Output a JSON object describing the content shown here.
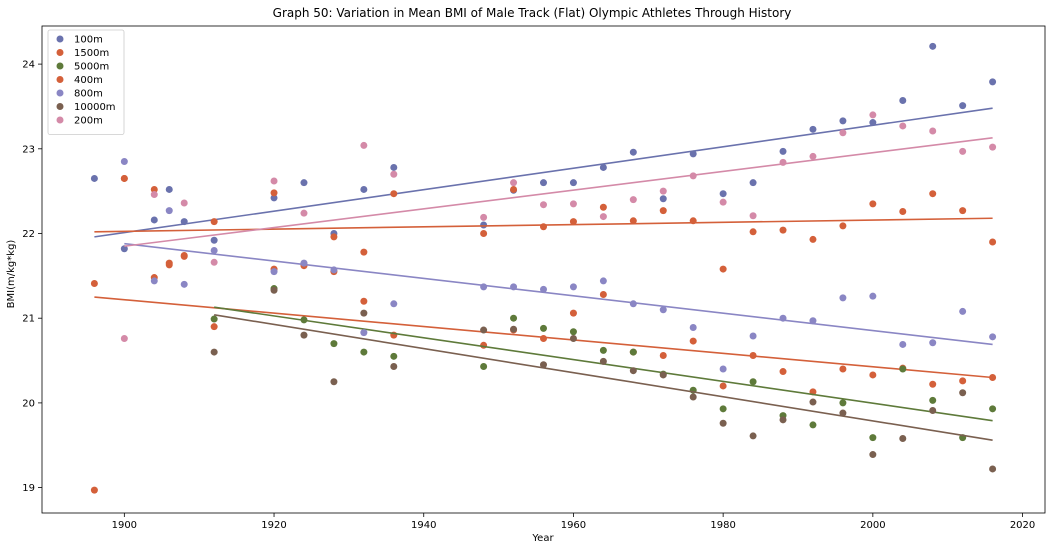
{
  "chart_data": {
    "type": "scatter",
    "title": "Graph 50: Variation in Mean BMI of Male Track (Flat) Olympic Athletes Through History",
    "xlabel": "Year",
    "ylabel": "BMI(m/kg*kg)",
    "xlim": [
      1889,
      2023
    ],
    "ylim": [
      18.7,
      24.45
    ],
    "xticks": [
      1900,
      1920,
      1940,
      1960,
      1980,
      2000,
      2020
    ],
    "yticks": [
      19,
      20,
      21,
      22,
      23,
      24
    ],
    "legend_position": "top-left",
    "grid": false,
    "series": [
      {
        "name": "100m",
        "color": "#6a72ad",
        "points": [
          [
            1896,
            22.65
          ],
          [
            1900,
            21.82
          ],
          [
            1904,
            22.16
          ],
          [
            1906,
            22.52
          ],
          [
            1908,
            22.14
          ],
          [
            1912,
            21.92
          ],
          [
            1920,
            22.42
          ],
          [
            1924,
            22.6
          ],
          [
            1928,
            22.0
          ],
          [
            1932,
            22.52
          ],
          [
            1936,
            22.78
          ],
          [
            1948,
            22.1
          ],
          [
            1952,
            22.51
          ],
          [
            1956,
            22.6
          ],
          [
            1960,
            22.6
          ],
          [
            1964,
            22.78
          ],
          [
            1968,
            22.96
          ],
          [
            1972,
            22.41
          ],
          [
            1976,
            22.94
          ],
          [
            1980,
            22.47
          ],
          [
            1984,
            22.6
          ],
          [
            1988,
            22.97
          ],
          [
            1992,
            23.23
          ],
          [
            1996,
            23.33
          ],
          [
            2000,
            23.31
          ],
          [
            2004,
            23.57
          ],
          [
            2008,
            24.21
          ],
          [
            2012,
            23.51
          ],
          [
            2016,
            23.79
          ]
        ],
        "trend": [
          [
            1896,
            21.96
          ],
          [
            2016,
            23.48
          ]
        ]
      },
      {
        "name": "1500m",
        "color": "#d4603a",
        "points": [
          [
            1896,
            21.41
          ],
          [
            1900,
            22.65
          ],
          [
            1904,
            21.48
          ],
          [
            1906,
            21.65
          ],
          [
            1908,
            21.74
          ],
          [
            1912,
            20.9
          ],
          [
            1920,
            21.58
          ],
          [
            1924,
            21.63
          ],
          [
            1928,
            21.55
          ],
          [
            1932,
            21.2
          ],
          [
            1936,
            20.8
          ],
          [
            1948,
            20.68
          ],
          [
            1952,
            20.86
          ],
          [
            1956,
            20.76
          ],
          [
            1960,
            21.06
          ],
          [
            1964,
            21.28
          ],
          [
            1968,
            20.6
          ],
          [
            1972,
            20.56
          ],
          [
            1976,
            20.73
          ],
          [
            1980,
            20.2
          ],
          [
            1984,
            20.56
          ],
          [
            1988,
            20.37
          ],
          [
            1992,
            20.13
          ],
          [
            1996,
            20.4
          ],
          [
            2000,
            20.33
          ],
          [
            2004,
            20.41
          ],
          [
            2008,
            20.22
          ],
          [
            2012,
            20.26
          ],
          [
            2016,
            20.3
          ]
        ],
        "trend": [
          [
            1896,
            21.25
          ],
          [
            2016,
            20.3
          ]
        ]
      },
      {
        "name": "5000m",
        "color": "#5e7a3a",
        "points": [
          [
            1912,
            20.99
          ],
          [
            1920,
            21.35
          ],
          [
            1924,
            20.98
          ],
          [
            1928,
            20.7
          ],
          [
            1932,
            20.6
          ],
          [
            1936,
            20.55
          ],
          [
            1948,
            20.43
          ],
          [
            1952,
            21.0
          ],
          [
            1956,
            20.88
          ],
          [
            1960,
            20.84
          ],
          [
            1964,
            20.62
          ],
          [
            1968,
            20.6
          ],
          [
            1972,
            20.34
          ],
          [
            1976,
            20.15
          ],
          [
            1980,
            19.93
          ],
          [
            1984,
            20.25
          ],
          [
            1988,
            19.85
          ],
          [
            1992,
            19.74
          ],
          [
            1996,
            20.0
          ],
          [
            2000,
            19.59
          ],
          [
            2004,
            20.4
          ],
          [
            2008,
            20.03
          ],
          [
            2012,
            19.59
          ],
          [
            2016,
            19.93
          ]
        ],
        "trend": [
          [
            1912,
            21.13
          ],
          [
            2016,
            19.79
          ]
        ]
      },
      {
        "name": "400m",
        "color": "#d4603a",
        "points": [
          [
            1896,
            18.97
          ],
          [
            1900,
            22.65
          ],
          [
            1904,
            22.52
          ],
          [
            1906,
            21.63
          ],
          [
            1908,
            21.73
          ],
          [
            1912,
            22.14
          ],
          [
            1920,
            22.48
          ],
          [
            1924,
            21.62
          ],
          [
            1928,
            21.96
          ],
          [
            1932,
            21.78
          ],
          [
            1936,
            22.47
          ],
          [
            1948,
            22.0
          ],
          [
            1952,
            22.52
          ],
          [
            1956,
            22.08
          ],
          [
            1960,
            22.14
          ],
          [
            1964,
            22.31
          ],
          [
            1968,
            22.15
          ],
          [
            1972,
            22.27
          ],
          [
            1976,
            22.15
          ],
          [
            1980,
            21.58
          ],
          [
            1984,
            22.02
          ],
          [
            1988,
            22.04
          ],
          [
            1992,
            21.93
          ],
          [
            1996,
            22.09
          ],
          [
            2000,
            22.35
          ],
          [
            2004,
            22.26
          ],
          [
            2008,
            22.47
          ],
          [
            2012,
            22.27
          ],
          [
            2016,
            21.9
          ]
        ],
        "trend": [
          [
            1896,
            22.02
          ],
          [
            2016,
            22.18
          ]
        ]
      },
      {
        "name": "800m",
        "color": "#8a86c4",
        "points": [
          [
            1900,
            22.85
          ],
          [
            1904,
            21.44
          ],
          [
            1906,
            22.27
          ],
          [
            1908,
            21.4
          ],
          [
            1912,
            21.8
          ],
          [
            1920,
            21.55
          ],
          [
            1924,
            21.65
          ],
          [
            1928,
            21.57
          ],
          [
            1932,
            20.83
          ],
          [
            1936,
            21.17
          ],
          [
            1948,
            21.37
          ],
          [
            1952,
            21.37
          ],
          [
            1956,
            21.34
          ],
          [
            1960,
            21.37
          ],
          [
            1964,
            21.44
          ],
          [
            1968,
            21.17
          ],
          [
            1972,
            21.1
          ],
          [
            1976,
            20.89
          ],
          [
            1980,
            20.4
          ],
          [
            1984,
            20.79
          ],
          [
            1988,
            21.0
          ],
          [
            1992,
            20.97
          ],
          [
            1996,
            21.24
          ],
          [
            2000,
            21.26
          ],
          [
            2004,
            20.69
          ],
          [
            2008,
            20.71
          ],
          [
            2012,
            21.08
          ],
          [
            2016,
            20.78
          ]
        ],
        "trend": [
          [
            1900,
            21.88
          ],
          [
            2016,
            20.69
          ]
        ]
      },
      {
        "name": "10000m",
        "color": "#7a6050",
        "points": [
          [
            1912,
            20.6
          ],
          [
            1920,
            21.33
          ],
          [
            1924,
            20.8
          ],
          [
            1928,
            20.25
          ],
          [
            1932,
            21.06
          ],
          [
            1936,
            20.43
          ],
          [
            1948,
            20.86
          ],
          [
            1952,
            20.87
          ],
          [
            1956,
            20.45
          ],
          [
            1960,
            20.76
          ],
          [
            1964,
            20.49
          ],
          [
            1968,
            20.38
          ],
          [
            1972,
            20.33
          ],
          [
            1976,
            20.07
          ],
          [
            1980,
            19.76
          ],
          [
            1984,
            19.61
          ],
          [
            1988,
            19.8
          ],
          [
            1992,
            20.01
          ],
          [
            1996,
            19.88
          ],
          [
            2000,
            19.39
          ],
          [
            2004,
            19.58
          ],
          [
            2008,
            19.91
          ],
          [
            2012,
            20.12
          ],
          [
            2016,
            19.22
          ]
        ],
        "trend": [
          [
            1912,
            21.04
          ],
          [
            2016,
            19.56
          ]
        ]
      },
      {
        "name": "200m",
        "color": "#d48aa8",
        "points": [
          [
            1900,
            20.76
          ],
          [
            1904,
            22.46
          ],
          [
            1908,
            22.36
          ],
          [
            1912,
            21.66
          ],
          [
            1920,
            22.62
          ],
          [
            1924,
            22.24
          ],
          [
            1932,
            23.04
          ],
          [
            1936,
            22.7
          ],
          [
            1948,
            22.19
          ],
          [
            1952,
            22.6
          ],
          [
            1956,
            22.34
          ],
          [
            1960,
            22.35
          ],
          [
            1964,
            22.2
          ],
          [
            1968,
            22.4
          ],
          [
            1972,
            22.5
          ],
          [
            1976,
            22.68
          ],
          [
            1980,
            22.37
          ],
          [
            1984,
            22.21
          ],
          [
            1988,
            22.84
          ],
          [
            1992,
            22.91
          ],
          [
            1996,
            23.19
          ],
          [
            2000,
            23.4
          ],
          [
            2004,
            23.27
          ],
          [
            2008,
            23.21
          ],
          [
            2012,
            22.97
          ],
          [
            2016,
            23.02
          ]
        ],
        "trend": [
          [
            1900,
            21.85
          ],
          [
            2016,
            23.13
          ]
        ]
      }
    ]
  }
}
